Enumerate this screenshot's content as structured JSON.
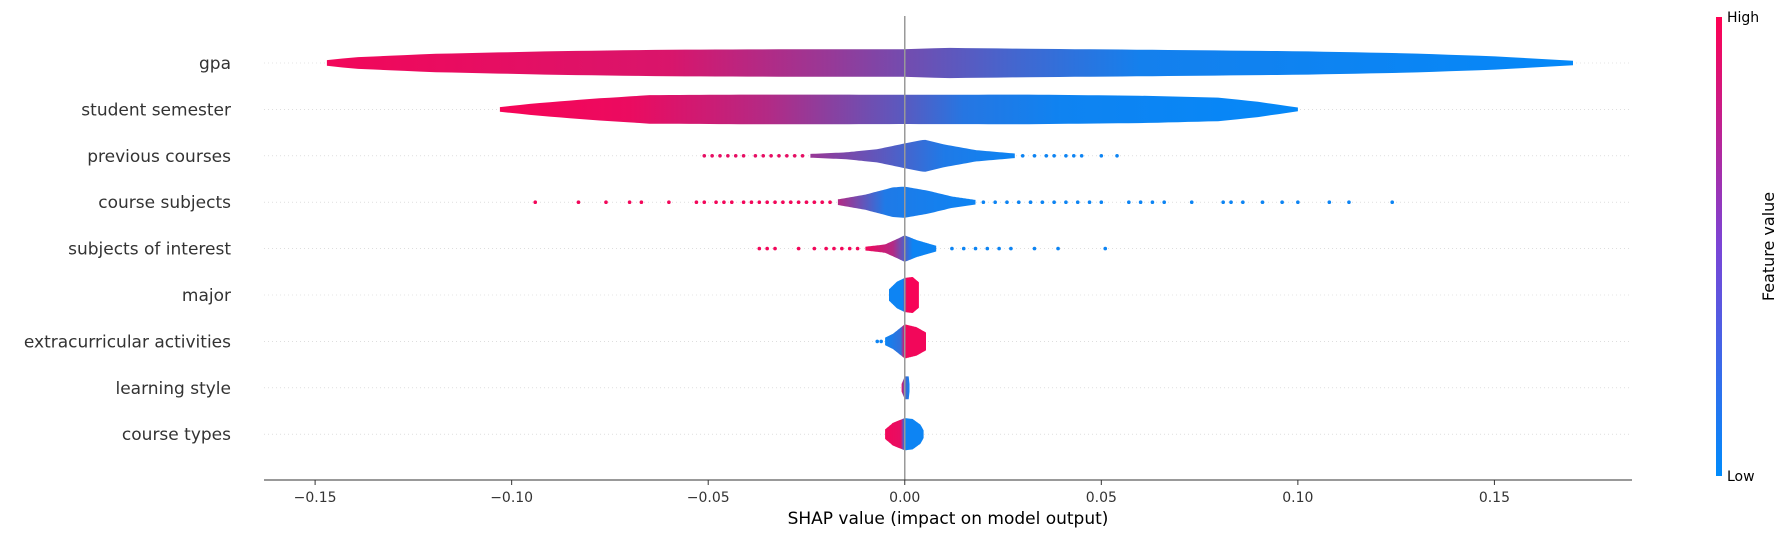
{
  "chart_data": {
    "type": "violin",
    "xlabel": "SHAP value (impact on model output)",
    "xlim": [
      -0.163,
      0.185
    ],
    "x_ticks": [
      -0.15,
      -0.1,
      -0.05,
      0.0,
      0.05,
      0.1,
      0.15
    ],
    "x_tick_labels": [
      "−0.15",
      "−0.10",
      "−0.05",
      "0.00",
      "0.05",
      "0.10",
      "0.15"
    ],
    "colorbar": {
      "title": "Feature value",
      "high_label": "High",
      "low_label": "Low",
      "low_color": "#008bfb",
      "high_color": "#ff0052"
    },
    "features": [
      {
        "name": "gpa",
        "profile": [
          [
            -0.147,
            0.15
          ],
          [
            -0.14,
            0.3
          ],
          [
            -0.12,
            0.48
          ],
          [
            -0.09,
            0.62
          ],
          [
            -0.06,
            0.7
          ],
          [
            -0.03,
            0.72
          ],
          [
            0.0,
            0.72
          ],
          [
            0.01,
            0.8
          ],
          [
            0.03,
            0.75
          ],
          [
            0.06,
            0.7
          ],
          [
            0.1,
            0.62
          ],
          [
            0.13,
            0.5
          ],
          [
            0.15,
            0.35
          ],
          [
            0.17,
            0.12
          ]
        ],
        "color": [
          [
            -0.147,
            0.95
          ],
          [
            -0.06,
            0.85
          ],
          [
            -0.02,
            0.6
          ],
          [
            0.0,
            0.45
          ],
          [
            0.03,
            0.25
          ],
          [
            0.06,
            0.08
          ],
          [
            0.17,
            0.02
          ]
        ],
        "points": []
      },
      {
        "name": "student semester",
        "profile": [
          [
            -0.103,
            0.12
          ],
          [
            -0.095,
            0.3
          ],
          [
            -0.08,
            0.55
          ],
          [
            -0.065,
            0.75
          ],
          [
            -0.04,
            0.78
          ],
          [
            -0.02,
            0.78
          ],
          [
            0.0,
            0.77
          ],
          [
            0.03,
            0.78
          ],
          [
            0.06,
            0.72
          ],
          [
            0.08,
            0.62
          ],
          [
            0.09,
            0.4
          ],
          [
            0.1,
            0.1
          ]
        ],
        "color": [
          [
            -0.103,
            0.97
          ],
          [
            -0.07,
            0.92
          ],
          [
            -0.05,
            0.8
          ],
          [
            -0.035,
            0.7
          ],
          [
            -0.02,
            0.55
          ],
          [
            0.0,
            0.35
          ],
          [
            0.015,
            0.15
          ],
          [
            0.04,
            0.06
          ],
          [
            0.1,
            0.02
          ]
        ],
        "points": []
      },
      {
        "name": "previous courses",
        "profile": [
          [
            -0.024,
            0.1
          ],
          [
            -0.015,
            0.18
          ],
          [
            -0.007,
            0.35
          ],
          [
            0.0,
            0.65
          ],
          [
            0.005,
            0.85
          ],
          [
            0.01,
            0.6
          ],
          [
            0.018,
            0.3
          ],
          [
            0.028,
            0.12
          ]
        ],
        "color": [
          [
            -0.024,
            0.6
          ],
          [
            -0.005,
            0.35
          ],
          [
            0.01,
            0.12
          ],
          [
            0.03,
            0.05
          ]
        ],
        "points": [
          [
            -0.051,
            0.9
          ],
          [
            -0.049,
            0.9
          ],
          [
            -0.047,
            0.9
          ],
          [
            -0.045,
            0.9
          ],
          [
            -0.043,
            0.9
          ],
          [
            -0.041,
            0.9
          ],
          [
            -0.038,
            0.9
          ],
          [
            -0.036,
            0.9
          ],
          [
            -0.034,
            0.9
          ],
          [
            -0.032,
            0.9
          ],
          [
            -0.03,
            0.9
          ],
          [
            -0.028,
            0.9
          ],
          [
            -0.026,
            0.9
          ],
          [
            0.03,
            0.05
          ],
          [
            0.033,
            0.05
          ],
          [
            0.036,
            0.05
          ],
          [
            0.038,
            0.05
          ],
          [
            0.041,
            0.05
          ],
          [
            0.043,
            0.05
          ],
          [
            0.045,
            0.05
          ],
          [
            0.05,
            0.05
          ],
          [
            0.054,
            0.05
          ]
        ]
      },
      {
        "name": "course subjects",
        "profile": [
          [
            -0.017,
            0.15
          ],
          [
            -0.01,
            0.4
          ],
          [
            -0.003,
            0.78
          ],
          [
            0.0,
            0.82
          ],
          [
            0.006,
            0.6
          ],
          [
            0.012,
            0.3
          ],
          [
            0.018,
            0.12
          ]
        ],
        "color": [
          [
            -0.017,
            0.7
          ],
          [
            -0.005,
            0.12
          ],
          [
            0.018,
            0.05
          ]
        ],
        "points": [
          [
            -0.094,
            0.95
          ],
          [
            -0.083,
            0.95
          ],
          [
            -0.076,
            0.95
          ],
          [
            -0.07,
            0.95
          ],
          [
            -0.067,
            0.95
          ],
          [
            -0.06,
            0.95
          ],
          [
            -0.053,
            0.95
          ],
          [
            -0.051,
            0.95
          ],
          [
            -0.048,
            0.95
          ],
          [
            -0.046,
            0.95
          ],
          [
            -0.044,
            0.95
          ],
          [
            -0.041,
            0.95
          ],
          [
            -0.039,
            0.95
          ],
          [
            -0.037,
            0.95
          ],
          [
            -0.035,
            0.95
          ],
          [
            -0.033,
            0.95
          ],
          [
            -0.031,
            0.95
          ],
          [
            -0.029,
            0.95
          ],
          [
            -0.027,
            0.95
          ],
          [
            -0.025,
            0.95
          ],
          [
            -0.023,
            0.95
          ],
          [
            -0.021,
            0.95
          ],
          [
            -0.019,
            0.95
          ],
          [
            0.02,
            0.05
          ],
          [
            0.023,
            0.05
          ],
          [
            0.026,
            0.05
          ],
          [
            0.029,
            0.05
          ],
          [
            0.032,
            0.05
          ],
          [
            0.035,
            0.05
          ],
          [
            0.038,
            0.05
          ],
          [
            0.041,
            0.05
          ],
          [
            0.044,
            0.05
          ],
          [
            0.047,
            0.05
          ],
          [
            0.05,
            0.05
          ],
          [
            0.057,
            0.05
          ],
          [
            0.06,
            0.05
          ],
          [
            0.063,
            0.05
          ],
          [
            0.066,
            0.05
          ],
          [
            0.073,
            0.05
          ],
          [
            0.081,
            0.05
          ],
          [
            0.083,
            0.05
          ],
          [
            0.086,
            0.05
          ],
          [
            0.091,
            0.05
          ],
          [
            0.096,
            0.05
          ],
          [
            0.1,
            0.05
          ],
          [
            0.108,
            0.05
          ],
          [
            0.113,
            0.05
          ],
          [
            0.124,
            0.05
          ]
        ]
      },
      {
        "name": "subjects of interest",
        "profile": [
          [
            -0.01,
            0.1
          ],
          [
            -0.005,
            0.22
          ],
          [
            -0.002,
            0.5
          ],
          [
            0.0,
            0.7
          ],
          [
            0.003,
            0.45
          ],
          [
            0.008,
            0.15
          ]
        ],
        "color": [
          [
            -0.01,
            0.95
          ],
          [
            -0.003,
            0.7
          ],
          [
            0.002,
            0.05
          ],
          [
            0.01,
            0.05
          ]
        ],
        "points": [
          [
            -0.037,
            0.95
          ],
          [
            -0.035,
            0.95
          ],
          [
            -0.033,
            0.95
          ],
          [
            -0.027,
            0.95
          ],
          [
            -0.023,
            0.95
          ],
          [
            -0.02,
            0.95
          ],
          [
            -0.018,
            0.95
          ],
          [
            -0.016,
            0.95
          ],
          [
            -0.014,
            0.95
          ],
          [
            -0.012,
            0.95
          ],
          [
            0.012,
            0.05
          ],
          [
            0.015,
            0.05
          ],
          [
            0.018,
            0.05
          ],
          [
            0.021,
            0.05
          ],
          [
            0.024,
            0.05
          ],
          [
            0.027,
            0.05
          ],
          [
            0.033,
            0.05
          ],
          [
            0.039,
            0.05
          ],
          [
            0.051,
            0.05
          ]
        ]
      },
      {
        "name": "major",
        "profile": [
          [
            -0.004,
            0.3
          ],
          [
            -0.002,
            0.7
          ],
          [
            0.0,
            0.9
          ],
          [
            0.002,
            0.95
          ],
          [
            0.004,
            0.6
          ],
          [
            0.0036,
            0.3
          ]
        ],
        "color": [
          [
            -0.004,
            0.05
          ],
          [
            -0.0005,
            0.05
          ],
          [
            0.0005,
            0.97
          ],
          [
            0.004,
            0.97
          ]
        ],
        "points": []
      },
      {
        "name": "extracurricular activities",
        "profile": [
          [
            -0.005,
            0.2
          ],
          [
            -0.003,
            0.4
          ],
          [
            0.0,
            0.9
          ],
          [
            0.003,
            0.75
          ],
          [
            0.006,
            0.4
          ],
          [
            0.0054,
            0.15
          ]
        ],
        "color": [
          [
            -0.005,
            0.05
          ],
          [
            -0.001,
            0.2
          ],
          [
            0.0,
            0.95
          ],
          [
            0.006,
            0.95
          ]
        ],
        "points": [
          [
            -0.007,
            0.05
          ],
          [
            -0.006,
            0.05
          ]
        ]
      },
      {
        "name": "learning style",
        "profile": [
          [
            -0.0008,
            0.2
          ],
          [
            0.0,
            0.6
          ],
          [
            0.001,
            0.6
          ],
          [
            0.0012,
            0.2
          ]
        ],
        "color": [
          [
            -0.0008,
            0.9
          ],
          [
            0.0,
            0.3
          ],
          [
            0.0012,
            0.05
          ]
        ],
        "points": []
      },
      {
        "name": "course types",
        "profile": [
          [
            -0.005,
            0.25
          ],
          [
            -0.003,
            0.6
          ],
          [
            0.0,
            0.85
          ],
          [
            0.002,
            0.8
          ],
          [
            0.004,
            0.5
          ],
          [
            0.0048,
            0.2
          ]
        ],
        "color": [
          [
            -0.005,
            0.95
          ],
          [
            -0.001,
            0.9
          ],
          [
            0.0,
            0.05
          ],
          [
            0.005,
            0.05
          ]
        ],
        "points": []
      }
    ]
  }
}
